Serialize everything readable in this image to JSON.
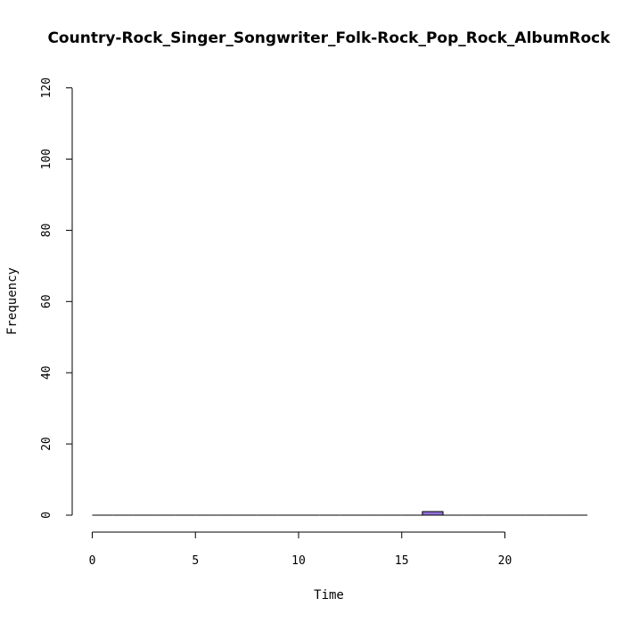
{
  "chart_data": {
    "type": "bar",
    "title": "Country-Rock_Singer_Songwriter_Folk-Rock_Pop_Rock_AlbumRock",
    "xlabel": "Time",
    "ylabel": "Frequency",
    "xlim": [
      0,
      24
    ],
    "ylim": [
      0,
      120
    ],
    "xticks": [
      "0",
      "5",
      "10",
      "15",
      "20"
    ],
    "yticks": [
      "0",
      "20",
      "40",
      "60",
      "80",
      "100",
      "120"
    ],
    "bin_width": 1,
    "bins": [
      {
        "x0": 0,
        "x1": 1,
        "count": 0
      },
      {
        "x0": 1,
        "x1": 2,
        "count": 0
      },
      {
        "x0": 2,
        "x1": 3,
        "count": 0
      },
      {
        "x0": 3,
        "x1": 4,
        "count": 0
      },
      {
        "x0": 4,
        "x1": 5,
        "count": 0
      },
      {
        "x0": 5,
        "x1": 6,
        "count": 0
      },
      {
        "x0": 6,
        "x1": 7,
        "count": 0
      },
      {
        "x0": 7,
        "x1": 8,
        "count": 0
      },
      {
        "x0": 8,
        "x1": 9,
        "count": 0
      },
      {
        "x0": 9,
        "x1": 10,
        "count": 0
      },
      {
        "x0": 10,
        "x1": 11,
        "count": 0
      },
      {
        "x0": 11,
        "x1": 12,
        "count": 0
      },
      {
        "x0": 12,
        "x1": 13,
        "count": 0
      },
      {
        "x0": 13,
        "x1": 14,
        "count": 0
      },
      {
        "x0": 14,
        "x1": 15,
        "count": 0
      },
      {
        "x0": 15,
        "x1": 16,
        "count": 0
      },
      {
        "x0": 16,
        "x1": 17,
        "count": 1
      },
      {
        "x0": 17,
        "x1": 18,
        "count": 0
      },
      {
        "x0": 18,
        "x1": 19,
        "count": 0
      },
      {
        "x0": 19,
        "x1": 20,
        "count": 0
      },
      {
        "x0": 20,
        "x1": 21,
        "count": 0
      },
      {
        "x0": 21,
        "x1": 22,
        "count": 0
      },
      {
        "x0": 22,
        "x1": 23,
        "count": 0
      },
      {
        "x0": 23,
        "x1": 24,
        "count": 0
      }
    ],
    "bar_color": "#9370DB",
    "grid": false
  }
}
